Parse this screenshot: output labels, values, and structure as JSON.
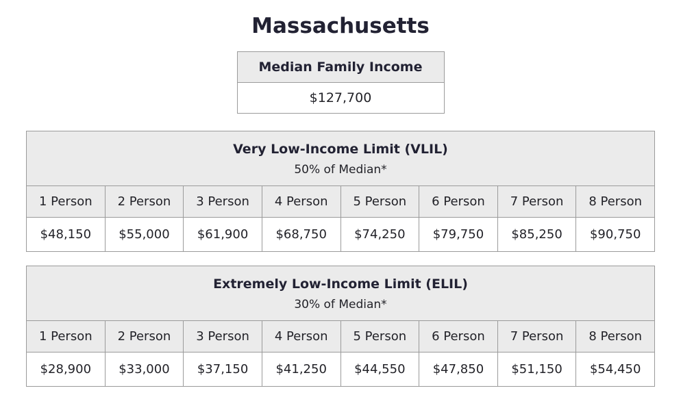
{
  "page": {
    "title": "Massachusetts"
  },
  "median_income": {
    "header": "Median Family Income",
    "value": "$127,700"
  },
  "tables": [
    {
      "id": "vlil",
      "title": "Very Low-Income Limit (VLIL)",
      "subtitle": "50% of Median*",
      "columns": [
        "1 Person",
        "2 Person",
        "3 Person",
        "4 Person",
        "5 Person",
        "6 Person",
        "7 Person",
        "8 Person"
      ],
      "values": [
        "$48,150",
        "$55,000",
        "$61,900",
        "$68,750",
        "$74,250",
        "$79,750",
        "$85,250",
        "$90,750"
      ]
    },
    {
      "id": "elil",
      "title": "Extremely Low-Income Limit (ELIL)",
      "subtitle": "30% of Median*",
      "columns": [
        "1 Person",
        "2 Person",
        "3 Person",
        "4 Person",
        "5 Person",
        "6 Person",
        "7 Person",
        "8 Person"
      ],
      "values": [
        "$28,900",
        "$33,000",
        "$37,150",
        "$41,250",
        "$44,550",
        "$47,850",
        "$51,150",
        "$54,450"
      ]
    }
  ],
  "colors": {
    "header_bg": "#ebebeb",
    "border": "#9a9a9a",
    "text": "#222233",
    "page_bg": "#ffffff"
  }
}
